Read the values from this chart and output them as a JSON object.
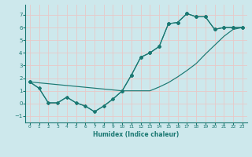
{
  "xlabel": "Humidex (Indice chaleur)",
  "bg_color": "#cde8ec",
  "grid_color": "#e8c8c8",
  "line_color": "#1a7872",
  "xlim": [
    -0.5,
    23.5
  ],
  "ylim": [
    -1.5,
    7.8
  ],
  "xticks": [
    0,
    1,
    2,
    3,
    4,
    5,
    6,
    7,
    8,
    9,
    10,
    11,
    12,
    13,
    14,
    15,
    16,
    17,
    18,
    19,
    20,
    21,
    22,
    23
  ],
  "yticks": [
    -1,
    0,
    1,
    2,
    3,
    4,
    5,
    6,
    7
  ],
  "line1_x": [
    0,
    1,
    2,
    3,
    4,
    5,
    6,
    7,
    8,
    9,
    10,
    11,
    12,
    13,
    14,
    15,
    16,
    17,
    18,
    19,
    20,
    21,
    22,
    23
  ],
  "line1_y": [
    1.7,
    1.2,
    0.05,
    0.05,
    0.5,
    0.05,
    -0.2,
    -0.65,
    -0.2,
    0.35,
    1.0,
    2.25,
    3.65,
    4.0,
    4.5,
    6.3,
    6.4,
    7.1,
    6.85,
    6.85,
    5.85,
    6.0,
    6.0,
    6.0
  ],
  "line2_x": [
    0,
    1,
    2,
    3,
    4,
    5,
    6,
    7,
    8,
    9,
    10,
    11,
    12,
    13,
    14,
    15,
    16,
    17,
    18,
    19,
    20,
    21,
    22,
    23
  ],
  "line2_y": [
    1.7,
    1.2,
    0.05,
    0.05,
    0.5,
    0.05,
    -0.2,
    -0.65,
    -0.2,
    0.35,
    1.0,
    1.0,
    1.0,
    1.0,
    1.3,
    1.65,
    2.1,
    2.6,
    3.15,
    3.9,
    4.6,
    5.3,
    5.85,
    6.0
  ],
  "line3_x": [
    0,
    10,
    11,
    12,
    13,
    14,
    15,
    16,
    17,
    18,
    19,
    20,
    21,
    22,
    23
  ],
  "line3_y": [
    1.7,
    1.0,
    2.25,
    3.65,
    4.0,
    4.5,
    6.3,
    6.4,
    7.1,
    6.85,
    6.85,
    5.85,
    6.0,
    6.0,
    6.0
  ]
}
